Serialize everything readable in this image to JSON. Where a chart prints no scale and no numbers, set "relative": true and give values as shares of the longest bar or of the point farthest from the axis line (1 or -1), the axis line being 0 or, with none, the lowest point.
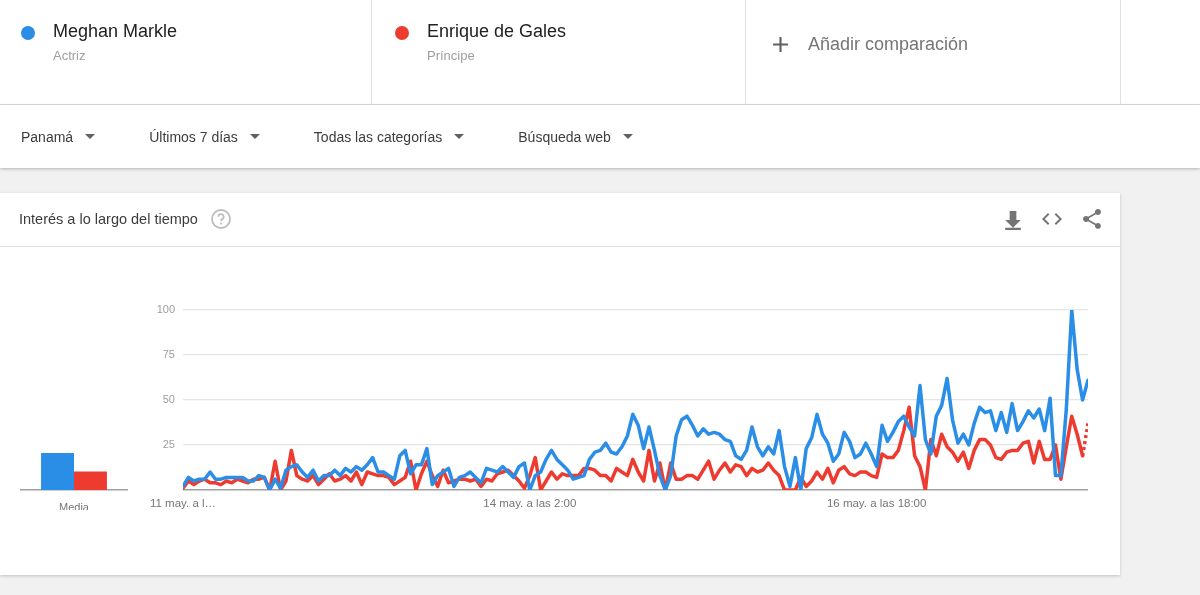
{
  "chart_data": [
    {
      "type": "bar",
      "categories": [
        "Media"
      ],
      "relative": true,
      "series": [
        {
          "color": "#2a8de6",
          "values": [
            1
          ]
        },
        {
          "color": "#ee3b30",
          "values": [
            0.5
          ]
        }
      ]
    },
    {
      "type": "line",
      "title": "Interés a lo largo del tiempo",
      "legend": "top",
      "grid": "y",
      "annotations": [
        "Actriz",
        "Príncipe",
        "Añadir comparación",
        "Panamá",
        "Últimos 7 días",
        "Todas las categorías",
        "Búsqueda web"
      ],
      "x": [
        "--05-11T10:00",
        "--05-11T11:00",
        "--05-11T12:00",
        "--05-11T13:00",
        "--05-11T14:00",
        "--05-11T15:00",
        "--05-11T16:00",
        "--05-11T17:00",
        "--05-11T18:00",
        "--05-11T19:00",
        "--05-11T20:00",
        "--05-11T21:00",
        "--05-11T22:00",
        "--05-11T23:00",
        "--05-12T00:00",
        "--05-12T01:00",
        "--05-12T02:00",
        "--05-12T03:00",
        "--05-12T04:00",
        "--05-12T05:00",
        "--05-12T06:00",
        "--05-12T07:00",
        "--05-12T08:00",
        "--05-12T09:00",
        "--05-12T10:00",
        "--05-12T11:00",
        "--05-12T12:00",
        "--05-12T13:00",
        "--05-12T14:00",
        "--05-12T15:00",
        "--05-12T16:00",
        "--05-12T17:00",
        "--05-12T18:00",
        "--05-12T19:00",
        "--05-12T20:00",
        "--05-12T21:00",
        "--05-12T22:00",
        "--05-12T23:00",
        "--05-13T00:00",
        "--05-13T01:00",
        "--05-13T02:00",
        "--05-13T03:00",
        "--05-13T04:00",
        "--05-13T05:00",
        "--05-13T06:00",
        "--05-13T07:00",
        "--05-13T08:00",
        "--05-13T09:00",
        "--05-13T10:00",
        "--05-13T11:00",
        "--05-13T12:00",
        "--05-13T13:00",
        "--05-13T14:00",
        "--05-13T15:00",
        "--05-13T16:00",
        "--05-13T17:00",
        "--05-13T18:00",
        "--05-13T19:00",
        "--05-13T20:00",
        "--05-13T21:00",
        "--05-13T22:00",
        "--05-13T23:00",
        "--05-14T00:00",
        "--05-14T01:00",
        "--05-14T02:00",
        "--05-14T03:00",
        "--05-14T04:00",
        "--05-14T05:00",
        "--05-14T06:00",
        "--05-14T07:00",
        "--05-14T08:00",
        "--05-14T09:00",
        "--05-14T10:00",
        "--05-14T11:00",
        "--05-14T12:00",
        "--05-14T13:00",
        "--05-14T14:00",
        "--05-14T15:00",
        "--05-14T16:00",
        "--05-14T17:00",
        "--05-14T18:00",
        "--05-14T19:00",
        "--05-14T20:00",
        "--05-14T21:00",
        "--05-14T22:00",
        "--05-14T23:00",
        "--05-15T00:00",
        "--05-15T01:00",
        "--05-15T02:00",
        "--05-15T03:00",
        "--05-15T04:00",
        "--05-15T05:00",
        "--05-15T06:00",
        "--05-15T07:00",
        "--05-15T08:00",
        "--05-15T09:00",
        "--05-15T10:00",
        "--05-15T11:00",
        "--05-15T12:00",
        "--05-15T13:00",
        "--05-15T14:00",
        "--05-15T15:00",
        "--05-15T16:00",
        "--05-15T17:00",
        "--05-15T18:00",
        "--05-15T19:00",
        "--05-15T20:00",
        "--05-15T21:00",
        "--05-15T22:00",
        "--05-15T23:00",
        "--05-16T00:00",
        "--05-16T01:00",
        "--05-16T02:00",
        "--05-16T03:00",
        "--05-16T04:00",
        "--05-16T05:00",
        "--05-16T06:00",
        "--05-16T07:00",
        "--05-16T08:00",
        "--05-16T09:00",
        "--05-16T10:00",
        "--05-16T11:00",
        "--05-16T12:00",
        "--05-16T13:00",
        "--05-16T14:00",
        "--05-16T15:00",
        "--05-16T16:00",
        "--05-16T17:00",
        "--05-16T18:00",
        "--05-16T19:00",
        "--05-16T20:00",
        "--05-16T21:00",
        "--05-16T22:00",
        "--05-16T23:00",
        "--05-17T00:00",
        "--05-17T01:00",
        "--05-17T02:00",
        "--05-17T03:00",
        "--05-17T04:00",
        "--05-17T05:00",
        "--05-17T06:00",
        "--05-17T07:00",
        "--05-17T08:00",
        "--05-17T09:00",
        "--05-17T10:00",
        "--05-17T11:00",
        "--05-17T12:00",
        "--05-17T13:00",
        "--05-17T14:00",
        "--05-17T15:00",
        "--05-17T16:00",
        "--05-17T17:00",
        "--05-17T18:00",
        "--05-17T19:00",
        "--05-17T20:00",
        "--05-17T21:00",
        "--05-17T22:00",
        "--05-17T23:00",
        "--05-18T00:00",
        "--05-18T01:00",
        "--05-18T02:00",
        "--05-18T03:00",
        "--05-18T04:00",
        "--05-18T05:00",
        "--05-18T06:00",
        "--05-18T07:00",
        "--05-18T08:00",
        "--05-18T09:00"
      ],
      "xlim": [
        "--05-11T10:00",
        "--05-18T09:00"
      ],
      "xticks": [
        {
          "value": "--05-11T10:00",
          "label": "11 may. a l…"
        },
        {
          "value": "--05-14T02:00",
          "label": "14 may. a las 2:00"
        },
        {
          "value": "--05-16T18:00",
          "label": "16 may. a las 18:00"
        }
      ],
      "ylim": [
        0,
        100
      ],
      "yticks": [
        {
          "value": 0,
          "label": null
        },
        25,
        50,
        75,
        100
      ],
      "series": [
        {
          "name": "Meghan Markle",
          "color": "#2a8de6",
          "values": [
            2,
            7,
            5,
            6,
            6,
            10,
            6,
            6,
            7,
            7,
            7,
            7,
            5,
            5,
            8,
            7,
            0,
            6,
            1,
            11,
            13,
            14,
            10,
            7,
            11,
            5,
            8,
            8,
            11,
            8,
            12,
            10,
            13,
            11,
            14,
            18,
            10,
            10,
            8,
            6,
            19,
            22,
            9,
            14,
            14,
            23,
            3,
            8,
            10,
            12,
            2,
            7,
            8,
            10,
            7,
            4,
            12,
            11,
            10,
            13,
            10,
            7,
            13,
            15,
            0,
            8,
            10,
            17,
            22,
            17,
            14,
            11,
            6,
            7,
            8,
            17,
            21,
            22,
            26,
            21,
            20,
            24,
            30,
            42,
            36,
            23,
            35,
            22,
            8,
            0,
            8,
            30,
            39,
            41,
            36,
            30,
            34,
            31,
            32,
            31,
            28,
            27,
            19,
            17,
            22,
            35,
            24,
            19,
            24,
            20,
            33,
            13,
            2,
            18,
            0,
            23,
            29,
            42,
            31,
            26,
            16,
            20,
            32,
            27,
            18,
            20,
            26,
            20,
            13,
            36,
            27,
            32,
            38,
            41,
            35,
            30,
            58,
            28,
            20,
            41,
            47,
            62,
            39,
            26,
            31,
            25,
            37,
            46,
            43,
            44,
            33,
            43,
            32,
            48,
            33,
            38,
            44,
            40,
            45,
            33,
            51,
            8,
            8,
            45,
            100,
            67,
            50,
            61
          ]
        },
        {
          "name": "Enrique de Gales",
          "color": "#ee3b30",
          "values": [
            1,
            5,
            3,
            5,
            6,
            4,
            4,
            3,
            5,
            4,
            6,
            5,
            4,
            6,
            6,
            7,
            0,
            16,
            0,
            5,
            22,
            8,
            6,
            5,
            8,
            3,
            6,
            9,
            5,
            6,
            8,
            5,
            10,
            3,
            10,
            9,
            8,
            8,
            7,
            3,
            5,
            7,
            16,
            0,
            9,
            16,
            8,
            2,
            11,
            4,
            5,
            6,
            6,
            5,
            6,
            2,
            6,
            5,
            9,
            10,
            11,
            8,
            5,
            1,
            8,
            18,
            0,
            5,
            10,
            6,
            9,
            8,
            8,
            8,
            12,
            12,
            11,
            8,
            8,
            5,
            12,
            10,
            8,
            17,
            10,
            5,
            22,
            5,
            15,
            0,
            15,
            6,
            6,
            8,
            8,
            6,
            11,
            16,
            6,
            11,
            15,
            10,
            14,
            13,
            8,
            12,
            10,
            11,
            15,
            11,
            8,
            0,
            0,
            0,
            7,
            2,
            5,
            10,
            6,
            12,
            4,
            11,
            13,
            9,
            8,
            10,
            10,
            8,
            7,
            20,
            18,
            18,
            22,
            33,
            46,
            19,
            13,
            0,
            28,
            19,
            31,
            24,
            21,
            16,
            21,
            12,
            22,
            28,
            28,
            25,
            18,
            17,
            21,
            22,
            22,
            26,
            27,
            15,
            27,
            17,
            17,
            25,
            6,
            24,
            41,
            31,
            19,
            null
          ]
        },
        {
          "color": "#ee3b30",
          "x": [
            "--05-18T08:00",
            "--05-18T09:00"
          ],
          "values": [
            19,
            37
          ],
          "line_style": "dotted"
        }
      ]
    }
  ]
}
